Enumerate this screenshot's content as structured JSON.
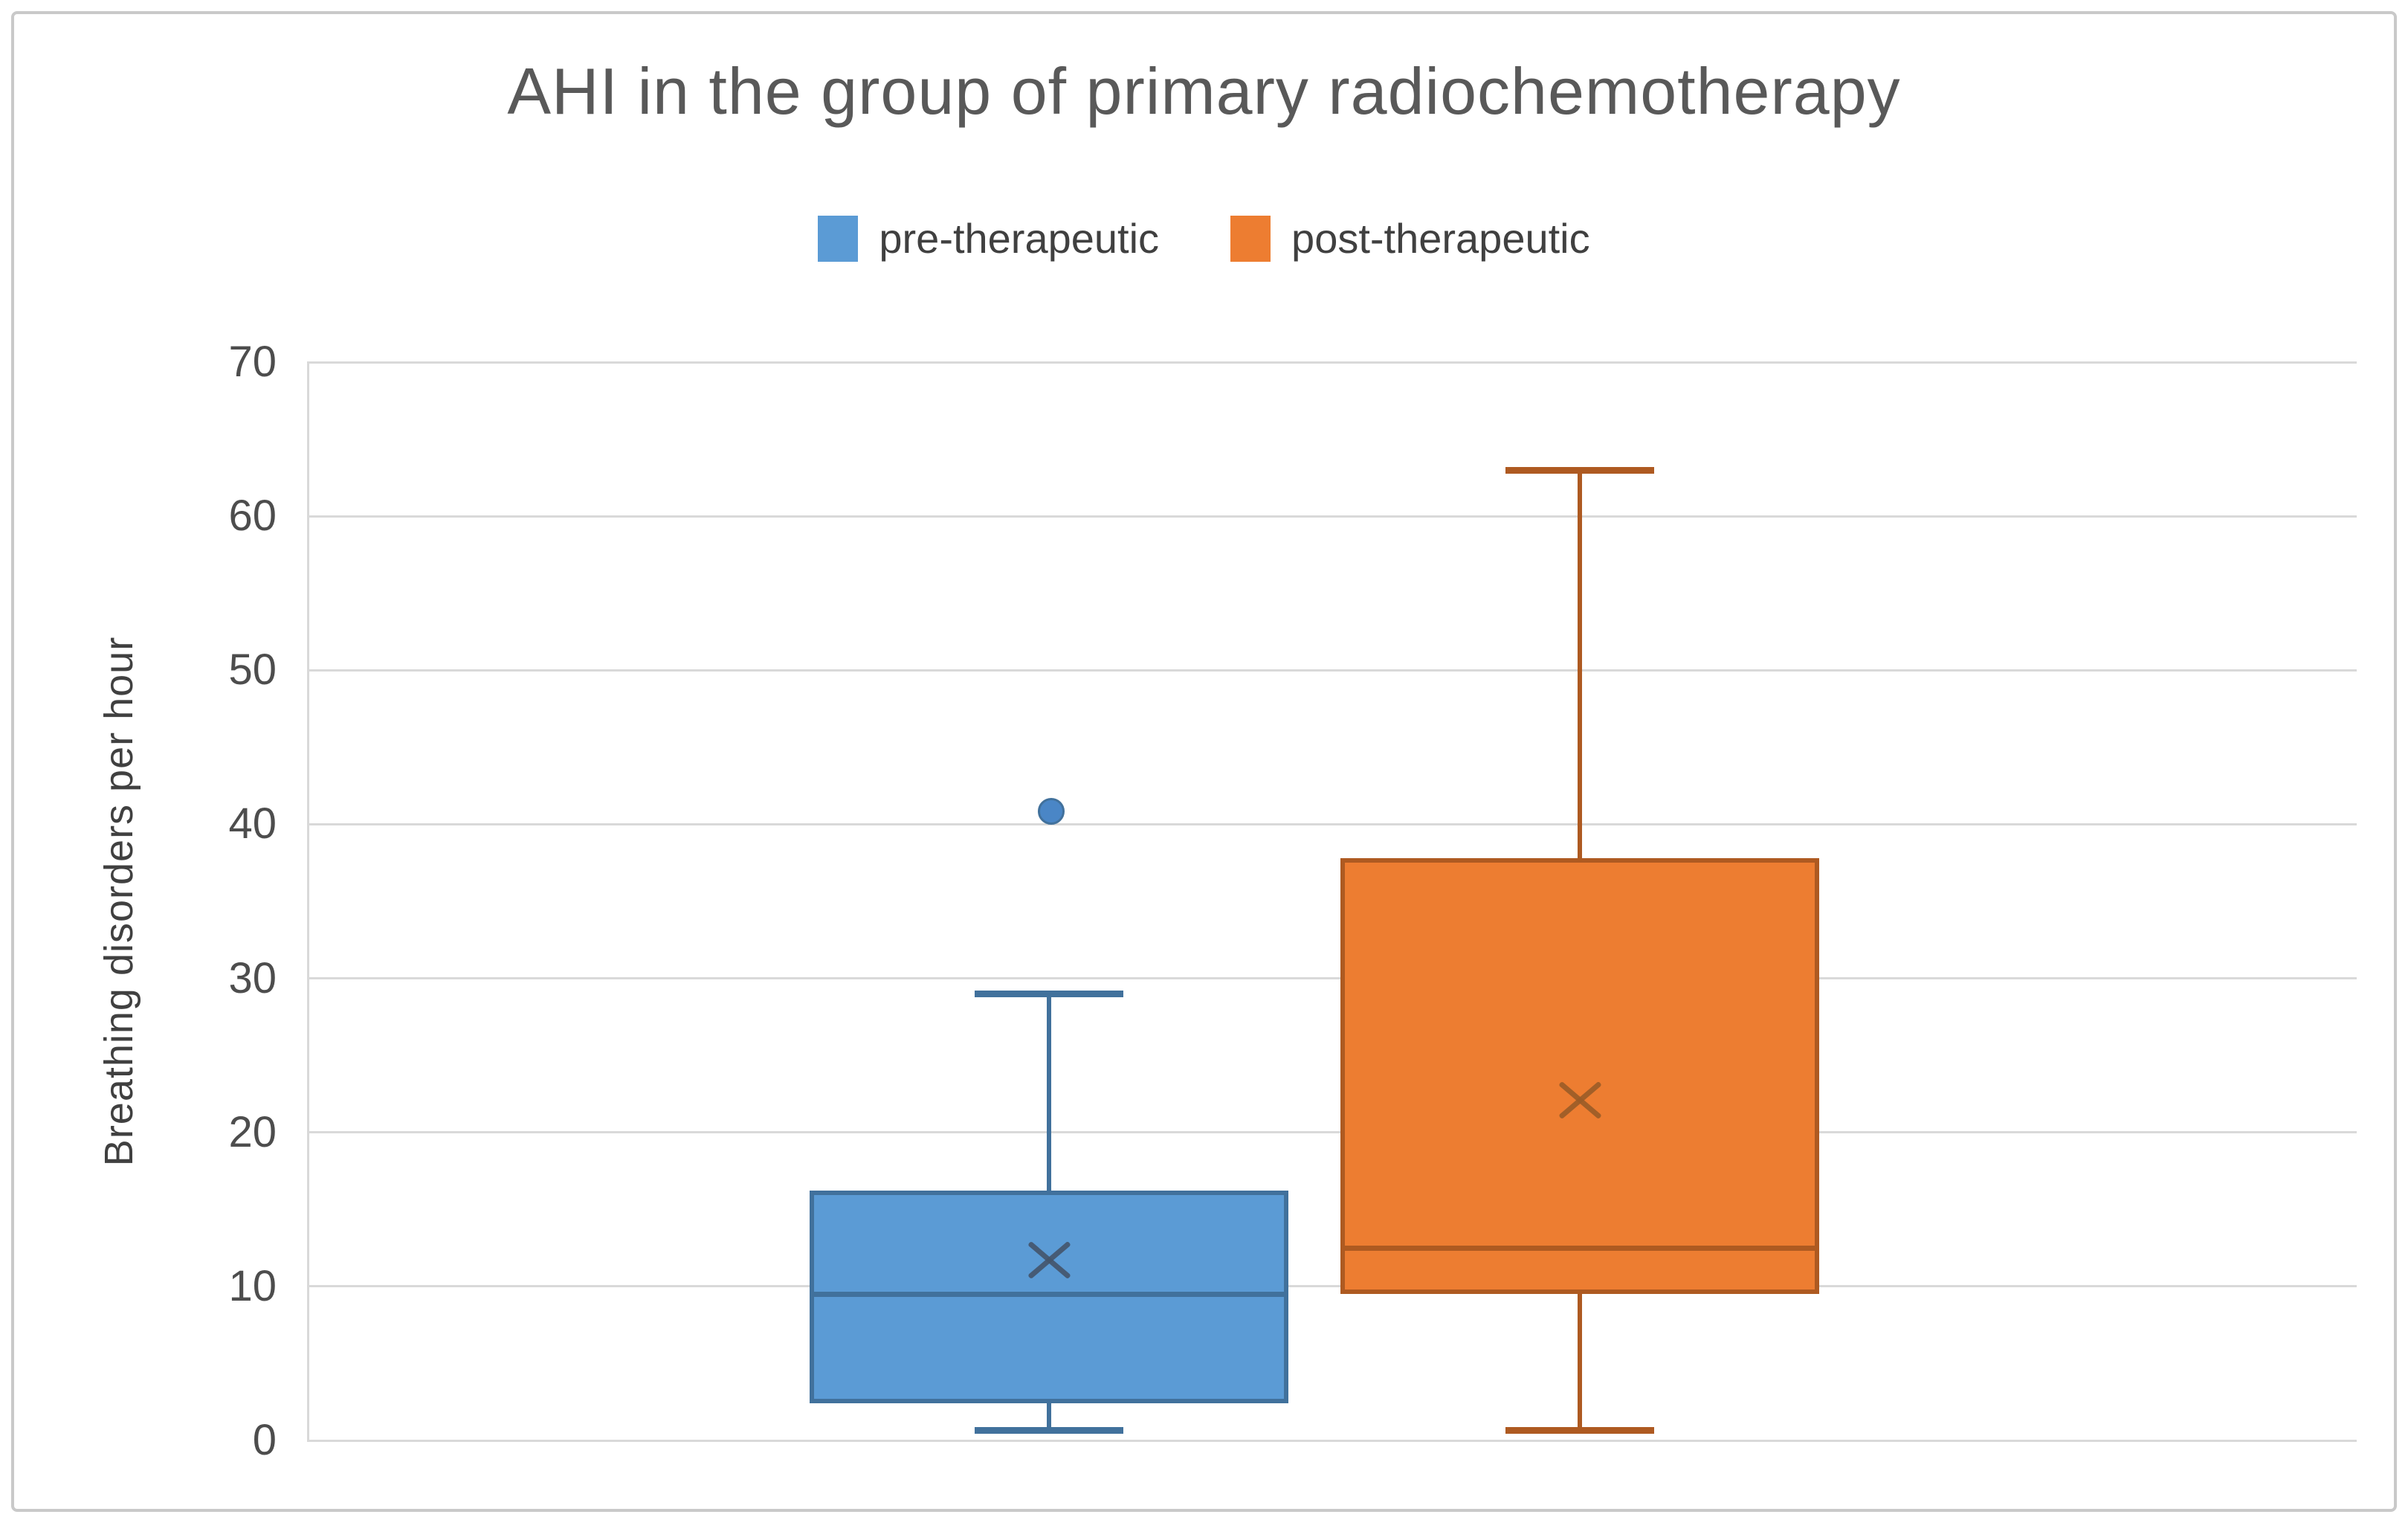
{
  "frame": {
    "border_color": "#C9C9C9"
  },
  "chart_data": {
    "type": "boxplot",
    "title": "AHI in the group of primary radiochemotherapy",
    "ylabel": "Breathing disorders per hour",
    "ylim": [
      0,
      70
    ],
    "yticks": [
      0,
      10,
      20,
      30,
      40,
      50,
      60,
      70
    ],
    "grid": "horizontal-on",
    "gridline_color": "#D9D9D9",
    "axis_line_color": "#D9D9D9",
    "title_color": "#595959",
    "text_color": "#404040",
    "legend_position": "top-center",
    "categories": [
      "pre-therapeutic",
      "post-therapeutic"
    ],
    "series": [
      {
        "name": "pre-therapeutic",
        "fill": "#5B9BD5",
        "stroke": "#41719C",
        "mean_color": "#44546A",
        "outlier_color": "#4A86C6",
        "min": 0.7,
        "q1": 2.4,
        "median": 9.5,
        "q3": 16.2,
        "max": 29,
        "mean": 11.7,
        "outliers": [
          41
        ]
      },
      {
        "name": "post-therapeutic",
        "fill": "#ED7D31",
        "stroke": "#AE5A21",
        "mean_color": "#995C28",
        "outlier_color": "#C55A11",
        "min": 0.7,
        "q1": 9.5,
        "median": 12.5,
        "q3": 37.8,
        "max": 63,
        "mean": 22.1,
        "outliers": []
      }
    ]
  }
}
